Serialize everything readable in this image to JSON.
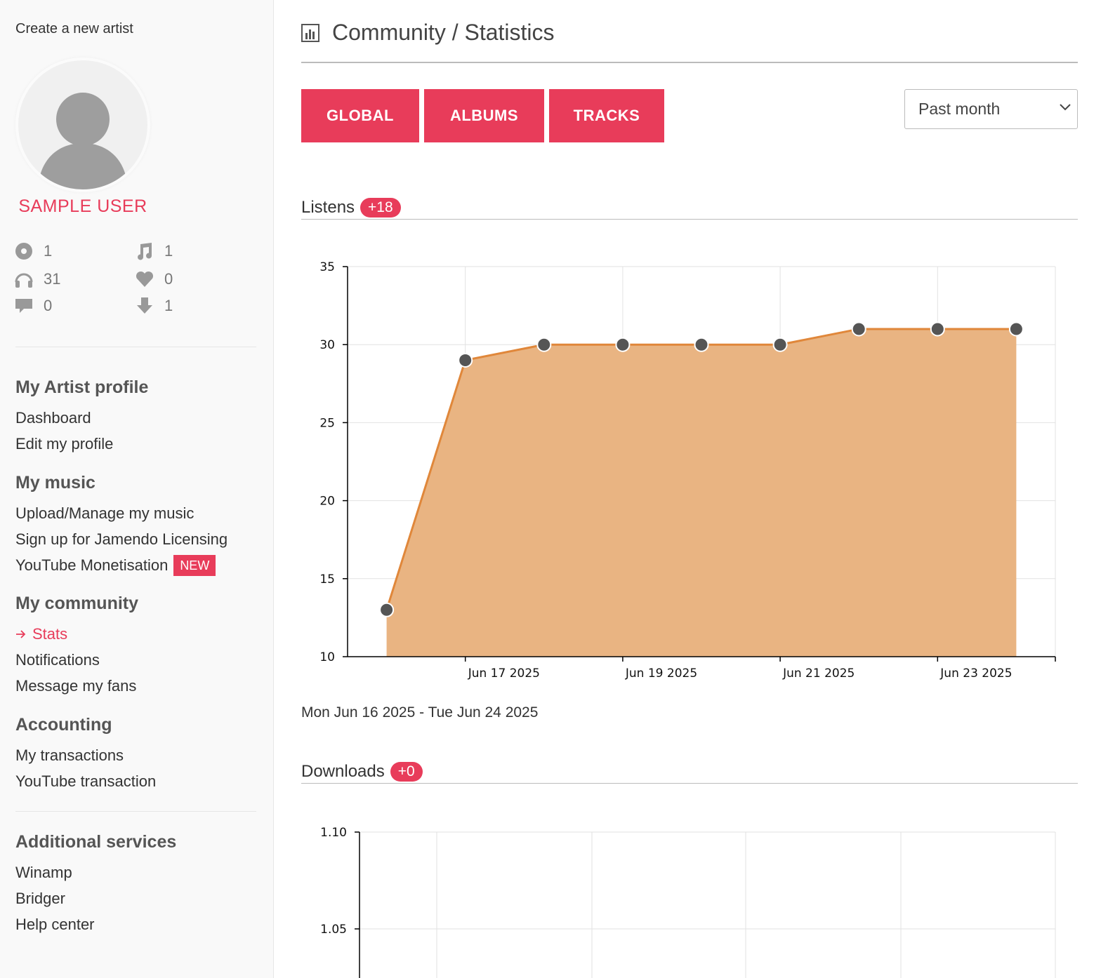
{
  "sidebar": {
    "create_link": "Create a new artist",
    "username": "SAMPLE USER",
    "stats": {
      "albums": "1",
      "tracks": "1",
      "listens": "31",
      "favorites": "0",
      "comments": "0",
      "downloads": "1"
    },
    "sections": [
      {
        "heading": "My Artist profile",
        "items": [
          "Dashboard",
          "Edit my profile"
        ]
      },
      {
        "heading": "My music",
        "items": [
          "Upload/Manage my music",
          "Sign up for Jamendo Licensing",
          "YouTube Monetisation"
        ],
        "new_badge": "NEW"
      },
      {
        "heading": "My community",
        "items": [
          "Stats",
          "Notifications",
          "Message my fans"
        ]
      },
      {
        "heading": "Accounting",
        "items": [
          "My transactions",
          "YouTube transaction"
        ]
      },
      {
        "heading": "Additional services",
        "items": [
          "Winamp",
          "Bridger",
          "Help center"
        ]
      }
    ]
  },
  "header": {
    "title": "Community / Statistics"
  },
  "tabs": [
    "GLOBAL",
    "ALBUMS",
    "TRACKS"
  ],
  "period": {
    "selected": "Past month"
  },
  "listens": {
    "label": "Listens",
    "badge": "+18",
    "date_range": "Mon Jun 16 2025 - Tue Jun 24 2025"
  },
  "downloads": {
    "label": "Downloads",
    "badge": "+0"
  },
  "colors": {
    "accent": "#e83c5a",
    "line": "#e0873a",
    "area": "#e9b482",
    "point": "#555555"
  },
  "chart_data": [
    {
      "type": "area",
      "x": [
        "Jun 16 2025",
        "Jun 17 2025",
        "Jun 18 2025",
        "Jun 19 2025",
        "Jun 20 2025",
        "Jun 21 2025",
        "Jun 22 2025",
        "Jun 23 2025",
        "Jun 24 2025"
      ],
      "y": [
        13,
        29,
        30,
        30,
        30,
        30,
        31,
        31,
        31
      ],
      "x_ticks": [
        "Jun 17 2025",
        "Jun 19 2025",
        "Jun 21 2025",
        "Jun 23 2025"
      ],
      "y_ticks": [
        "10",
        "15",
        "20",
        "25",
        "30",
        "35"
      ],
      "ylim": [
        10,
        35
      ],
      "grid": true,
      "title": "Listens"
    },
    {
      "type": "line",
      "y_ticks": [
        "1.05",
        "1.10"
      ],
      "ylim": [
        1.0,
        1.1
      ],
      "grid": true,
      "title": "Downloads"
    }
  ]
}
